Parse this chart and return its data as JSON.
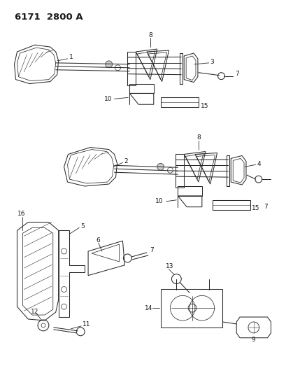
{
  "title": "6171  2800 A",
  "bg_color": "#ffffff",
  "line_color": "#2a2a2a",
  "lw": 0.75,
  "fig_width": 4.1,
  "fig_height": 5.33,
  "dpi": 100,
  "label_fontsize": 6.5
}
